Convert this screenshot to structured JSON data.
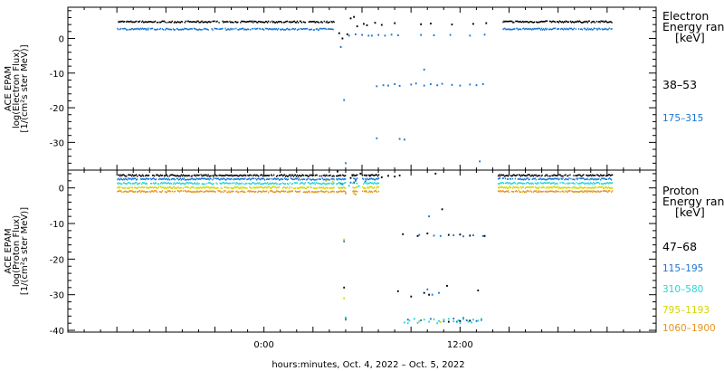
{
  "chart_data": [
    {
      "type": "scatter",
      "panel": "electron",
      "ylabel_lines": [
        "ACE EPAM",
        "log(Electron Flux)",
        "[1/(cm²s ster MeV)]"
      ],
      "ylim": [
        -38,
        9
      ],
      "yticks": [
        0,
        -10,
        -20,
        -30
      ],
      "legend_title_lines": [
        "Electron",
        "Energy ranges",
        "[keV]"
      ],
      "series": [
        {
          "name": "38–53",
          "color": "#000000",
          "baseline": 4.8,
          "segments": [
            [
              -9.0,
              4.3
            ],
            [
              14.6,
              21.3
            ]
          ],
          "gaps": [
            [
              4.3,
              5.0
            ]
          ],
          "points": [
            [
              4.6,
              1.5
            ],
            [
              4.8,
              0.0
            ],
            [
              5.1,
              1.2
            ],
            [
              5.3,
              5.8
            ],
            [
              5.5,
              6.2
            ],
            [
              5.7,
              3.5
            ],
            [
              6.1,
              4.2
            ],
            [
              6.3,
              3.8
            ],
            [
              6.8,
              4.5
            ],
            [
              7.2,
              3.9
            ],
            [
              8.0,
              4.4
            ],
            [
              9.6,
              4.1
            ],
            [
              10.2,
              4.3
            ],
            [
              11.5,
              4.0
            ],
            [
              12.8,
              4.2
            ],
            [
              13.6,
              4.4
            ]
          ]
        },
        {
          "name": "175–315",
          "color": "#1a75d2",
          "baseline": 2.7,
          "segments": [
            [
              -9.0,
              4.3
            ],
            [
              14.6,
              21.3
            ]
          ],
          "gaps": [],
          "points": [
            [
              4.7,
              -2.5
            ],
            [
              4.9,
              -17.8
            ],
            [
              5.0,
              -36.0
            ],
            [
              5.2,
              0.8
            ],
            [
              5.6,
              1.2
            ],
            [
              6.0,
              1.0
            ],
            [
              6.4,
              0.8
            ],
            [
              6.6,
              0.8
            ],
            [
              7.0,
              1.0
            ],
            [
              7.4,
              0.8
            ],
            [
              7.8,
              1.1
            ],
            [
              8.2,
              0.9
            ],
            [
              6.9,
              -13.8
            ],
            [
              7.3,
              -13.5
            ],
            [
              7.6,
              -13.6
            ],
            [
              8.0,
              -13.2
            ],
            [
              8.3,
              -13.7
            ],
            [
              9.0,
              -13.3
            ],
            [
              9.3,
              -13.0
            ],
            [
              9.8,
              -13.6
            ],
            [
              10.2,
              -13.2
            ],
            [
              10.6,
              -13.5
            ],
            [
              10.9,
              -13.1
            ],
            [
              11.5,
              -13.4
            ],
            [
              12.0,
              -13.6
            ],
            [
              12.6,
              -13.3
            ],
            [
              13.0,
              -13.5
            ],
            [
              13.4,
              -13.2
            ],
            [
              9.8,
              -9.0
            ],
            [
              6.9,
              -28.8
            ],
            [
              8.3,
              -29.0
            ],
            [
              8.6,
              -29.2
            ],
            [
              13.2,
              -35.5
            ],
            [
              9.6,
              1.0
            ],
            [
              10.4,
              0.9
            ],
            [
              11.4,
              1.0
            ],
            [
              12.6,
              0.8
            ],
            [
              13.5,
              1.1
            ]
          ]
        }
      ]
    },
    {
      "type": "scatter",
      "panel": "proton",
      "ylabel_lines": [
        "ACE EPAM",
        "log(Proton Flux)",
        "[1/(cm²s ster MeV)]"
      ],
      "ylim": [
        -40.5,
        5
      ],
      "yticks": [
        0,
        -10,
        -20,
        -30,
        -40
      ],
      "legend_title_lines": [
        "Proton",
        "Energy ranges",
        "[keV]"
      ],
      "series": [
        {
          "name": "47–68",
          "color": "#000000",
          "baseline": 3.5,
          "segments": [
            [
              -9.0,
              4.3
            ],
            [
              4.4,
              5.0
            ],
            [
              5.4,
              5.7
            ],
            [
              6.0,
              7.0
            ],
            [
              14.3,
              21.3
            ]
          ],
          "gaps": [],
          "points": [
            [
              4.5,
              4.6
            ],
            [
              4.7,
              1.2
            ],
            [
              4.9,
              -28.0
            ],
            [
              5.0,
              -36.5
            ],
            [
              5.3,
              2.8
            ],
            [
              5.4,
              3.6
            ],
            [
              5.5,
              1.5
            ],
            [
              5.9,
              4.0
            ],
            [
              6.5,
              3.5
            ],
            [
              7.2,
              3.0
            ],
            [
              7.6,
              3.4
            ],
            [
              8.0,
              3.2
            ],
            [
              8.3,
              3.5
            ],
            [
              10.5,
              4.0
            ],
            [
              10.9,
              -6.0
            ],
            [
              10.0,
              -12.8
            ],
            [
              11.3,
              -13.2
            ],
            [
              12.0,
              -13.1
            ],
            [
              12.6,
              -13.4
            ],
            [
              13.5,
              -13.5
            ],
            [
              8.5,
              -13.0
            ],
            [
              9.4,
              -13.5
            ],
            [
              8.2,
              -29.0
            ],
            [
              9.0,
              -30.5
            ],
            [
              9.8,
              -29.5
            ],
            [
              11.2,
              -27.5
            ],
            [
              13.1,
              -28.8
            ],
            [
              10.1,
              -30.0
            ],
            [
              11.3,
              -37.6
            ],
            [
              12.0,
              -37.4
            ],
            [
              12.6,
              -37.3
            ]
          ]
        },
        {
          "name": "115–195",
          "color": "#1a75d2",
          "baseline": 2.5,
          "segments": [
            [
              -9.0,
              4.3
            ],
            [
              4.4,
              5.0
            ],
            [
              5.4,
              5.7
            ],
            [
              6.0,
              7.0
            ],
            [
              14.3,
              21.3
            ]
          ],
          "gaps": [],
          "points": [
            [
              4.8,
              1.0
            ],
            [
              4.9,
              -15.0
            ],
            [
              5.0,
              -37.0
            ],
            [
              5.3,
              1.5
            ],
            [
              5.6,
              2.0
            ],
            [
              6.2,
              1.8
            ],
            [
              10.1,
              -8.0
            ],
            [
              9.5,
              -13.2
            ],
            [
              10.4,
              -13.4
            ],
            [
              10.8,
              -13.5
            ],
            [
              11.6,
              -13.3
            ],
            [
              12.2,
              -13.6
            ],
            [
              12.8,
              -13.3
            ],
            [
              13.4,
              -13.5
            ],
            [
              10.0,
              -28.5
            ],
            [
              10.7,
              -29.5
            ],
            [
              10.3,
              -30.0
            ],
            [
              8.8,
              -37.0
            ],
            [
              9.6,
              -37.2
            ],
            [
              10.2,
              -36.8
            ],
            [
              11.0,
              -37.5
            ],
            [
              11.8,
              -37.6
            ],
            [
              12.4,
              -37.2
            ],
            [
              13.0,
              -37.4
            ],
            [
              13.3,
              -37.1
            ],
            [
              12.2,
              -36.5
            ],
            [
              11.6,
              -36.7
            ]
          ]
        },
        {
          "name": "310–580",
          "color": "#26d5d5",
          "baseline": 1.3,
          "segments": [
            [
              -9.0,
              4.3
            ],
            [
              4.4,
              5.0
            ],
            [
              5.4,
              5.7
            ],
            [
              6.0,
              7.0
            ],
            [
              14.3,
              21.3
            ]
          ],
          "gaps": [],
          "points": [
            [
              4.8,
              0.0
            ],
            [
              5.0,
              -36.5
            ],
            [
              5.2,
              0.6
            ],
            [
              5.8,
              0.5
            ],
            [
              8.6,
              -37.8
            ],
            [
              8.9,
              -37.3
            ],
            [
              9.2,
              -36.8
            ],
            [
              9.5,
              -37.5
            ],
            [
              9.8,
              -37.0
            ],
            [
              10.1,
              -37.6
            ],
            [
              10.4,
              -36.9
            ],
            [
              10.7,
              -37.4
            ],
            [
              11.0,
              -37.0
            ],
            [
              11.3,
              -36.8
            ],
            [
              11.6,
              -37.5
            ],
            [
              11.9,
              -37.2
            ],
            [
              12.2,
              -36.9
            ],
            [
              12.5,
              -37.6
            ],
            [
              12.8,
              -37.0
            ],
            [
              13.1,
              -37.3
            ],
            [
              13.3,
              -36.8
            ],
            [
              8.8,
              -38.0
            ],
            [
              9.4,
              -37.9
            ],
            [
              10.6,
              -38.0
            ],
            [
              12.0,
              -38.0
            ],
            [
              12.7,
              -37.8
            ]
          ]
        },
        {
          "name": "795–1193",
          "color": "#d5d500",
          "baseline": 0.1,
          "segments": [
            [
              -9.0,
              4.3
            ],
            [
              4.4,
              5.0
            ],
            [
              5.4,
              5.7
            ],
            [
              6.0,
              7.0
            ],
            [
              14.3,
              21.3
            ]
          ],
          "gaps": [],
          "points": [
            [
              3.8,
              2.0
            ],
            [
              4.2,
              1.8
            ],
            [
              4.9,
              -14.5
            ],
            [
              4.9,
              -31.0
            ],
            [
              5.5,
              -1.5
            ],
            [
              6.2,
              -0.8
            ],
            [
              9.5,
              -37.5
            ],
            [
              10.8,
              -37.7
            ]
          ]
        },
        {
          "name": "1060–1900",
          "color": "#e69520",
          "baseline": -1.0,
          "segments": [
            [
              -9.0,
              4.3
            ],
            [
              4.4,
              5.0
            ],
            [
              5.4,
              5.7
            ],
            [
              6.0,
              7.0
            ],
            [
              14.3,
              21.3
            ]
          ],
          "gaps": [],
          "points": [
            [
              5.0,
              -1.5
            ],
            [
              5.6,
              -1.8
            ]
          ]
        }
      ]
    }
  ],
  "x_axis": {
    "label": "hours:minutes, Oct.  4, 2022 – Oct.  5, 2022",
    "range_hours": [
      -12,
      24
    ],
    "tick_labels": [
      {
        "hour": 0,
        "label": "0:00"
      },
      {
        "hour": 12,
        "label": "12:00"
      }
    ],
    "minor_tick_every_hours": 1,
    "major_tick_every_hours": 3
  }
}
